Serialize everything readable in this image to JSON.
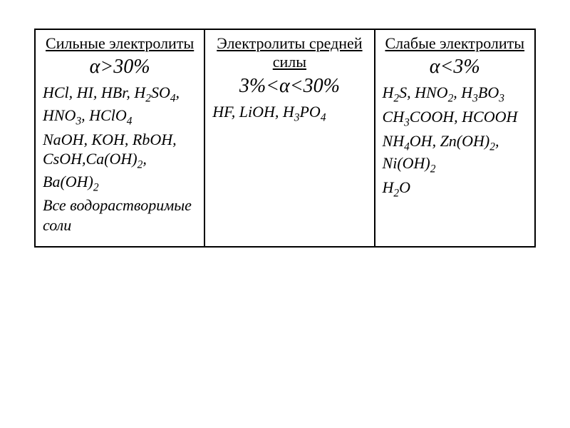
{
  "table": {
    "columns": [
      {
        "header": "Сильные электролиты",
        "alpha": "α>30%",
        "lines": [
          "HCl, HI, HBr, H<sub>2</sub>SO<sub>4</sub>, HNO<sub>3</sub>, HClO<sub>4</sub>",
          "NaOH, KOH, RbOH, CsOH,Ca(OH)<sub>2</sub>, Ba(OH)<sub>2</sub>",
          "Все водорастворимые соли"
        ]
      },
      {
        "header": "Электролиты средней силы",
        "alpha": "3%<α<30%",
        "lines": [
          "HF, LiOH, H<sub>3</sub>PO<sub>4</sub>"
        ]
      },
      {
        "header": "Слабые электролиты",
        "alpha": "α<3%",
        "lines": [
          "H<sub>2</sub>S, HNO<sub>2</sub>, H<sub>3</sub>BO<sub>3</sub>",
          "CH<sub>3</sub>COOH, HCOOH",
          "NH<sub>4</sub>OH, Zn(OH)<sub>2</sub>, Ni(OH)<sub>2</sub>",
          "H<sub>2</sub>O"
        ]
      }
    ],
    "style": {
      "border_color": "#000000",
      "border_width": 2,
      "background_color": "#ffffff",
      "header_fontsize": 22,
      "alpha_fontsize": 28,
      "body_fontsize": 22,
      "font_family": "Times New Roman"
    }
  }
}
